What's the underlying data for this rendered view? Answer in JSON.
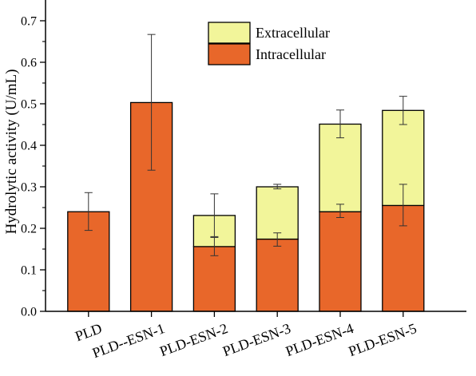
{
  "chart_data": {
    "type": "bar",
    "stacked": true,
    "categories": [
      "PLD",
      "PLD--ESN-1",
      "PLD-ESN-2",
      "PLD-ESN-3",
      "PLD-ESN-4",
      "PLD-ESN-5"
    ],
    "series": [
      {
        "name": "Intracellular",
        "color": "#e8672a",
        "values": [
          0.24,
          0.503,
          0.156,
          0.174,
          0.24,
          0.255
        ],
        "error_low": [
          0.195,
          0.34,
          0.134,
          0.157,
          0.226,
          0.206
        ],
        "error_high": [
          0.286,
          0.667,
          0.178,
          0.189,
          0.258,
          0.306
        ]
      },
      {
        "name": "Extracellular",
        "color": "#f2f59a",
        "values": [
          0,
          0,
          0.075,
          0.126,
          0.211,
          0.229
        ],
        "error_low": [
          null,
          null,
          0.18,
          0.295,
          0.418,
          0.45
        ],
        "error_high": [
          null,
          null,
          0.283,
          0.306,
          0.485,
          0.518
        ]
      }
    ],
    "ylabel": "Hydrolytic activity (U/mL)",
    "xlabel": "",
    "ylim": [
      0,
      0.75
    ],
    "yticks": [
      0.0,
      0.1,
      0.2,
      0.3,
      0.4,
      0.5,
      0.6,
      0.7
    ],
    "grid": false,
    "legend": "top-center",
    "legend_order": [
      "Extracellular",
      "Intracellular"
    ]
  }
}
